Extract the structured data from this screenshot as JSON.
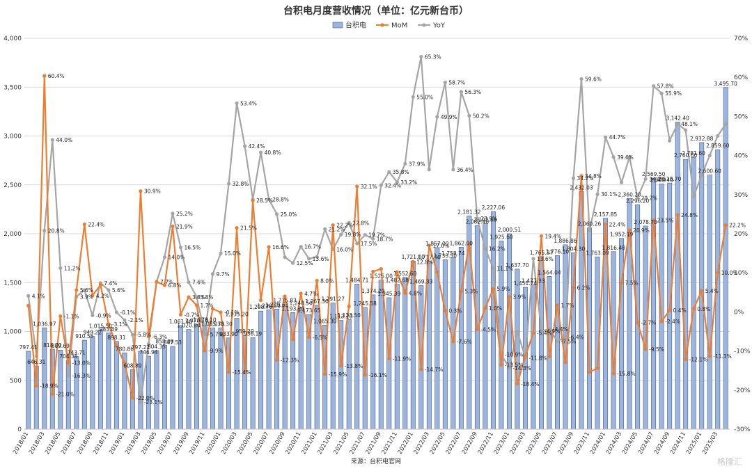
{
  "source": "来源：台积电官网",
  "watermark": "格隆汇",
  "colors": {
    "bar": "#9db5dc",
    "bar_edge": "#3c5a8c",
    "mom": "#ed7d31",
    "yoy": "#a5a5a5",
    "grid": "#d9d9d9"
  },
  "chart_data": {
    "type": "bar",
    "title": "台积电月度营收情况（单位：亿元新台币）",
    "legend_position": "top-center",
    "grid": true,
    "y_left": {
      "min": 0,
      "max": 4000,
      "step": 500,
      "ticks": [
        "0",
        "500",
        "1,000",
        "1,500",
        "2,000",
        "2,500",
        "3,000",
        "3,500",
        "4,000"
      ]
    },
    "y_right": {
      "min": -30,
      "max": 70,
      "step": 10,
      "ticks": [
        "-30%",
        "-20%",
        "-10%",
        "0%",
        "10%",
        "20%",
        "30%",
        "40%",
        "50%",
        "60%",
        "70%"
      ]
    },
    "categories": [
      "2018/01",
      "2018/02",
      "2018/03",
      "2018/04",
      "2018/05",
      "2018/06",
      "2018/07",
      "2018/08",
      "2018/09",
      "2018/10",
      "2018/11",
      "2018/12",
      "2019/01",
      "2019/02",
      "2019/03",
      "2019/04",
      "2019/05",
      "2019/06",
      "2019/07",
      "2019/08",
      "2019/09",
      "2019/10",
      "2019/11",
      "2019/12",
      "2020/01",
      "2020/02",
      "2020/03",
      "2020/04",
      "2020/05",
      "2020/06",
      "2020/07",
      "2020/08",
      "2020/09",
      "2020/10",
      "2020/11",
      "2020/12",
      "2021/01",
      "2021/02",
      "2021/03",
      "2021/04",
      "2021/05",
      "2021/06",
      "2021/07",
      "2021/08",
      "2021/09",
      "2021/10",
      "2021/11",
      "2021/12",
      "2022/01",
      "2022/02",
      "2022/03",
      "2022/04",
      "2022/05",
      "2022/06",
      "2022/07",
      "2022/08",
      "2022/09",
      "2022/10",
      "2022/11",
      "2022/12",
      "2023/01",
      "2023/02",
      "2023/03",
      "2023/04",
      "2023/05",
      "2023/06",
      "2023/07",
      "2023/08",
      "2023/09",
      "2023/10",
      "2023/11",
      "2023/12",
      "2024/01",
      "2024/02",
      "2024/03",
      "2024/04",
      "2024/05",
      "2024/06",
      "2024/07",
      "2024/08",
      "2024/09",
      "2024/10",
      "2024/11",
      "2024/12",
      "2025/01",
      "2025/02",
      "2025/03",
      "2025/04"
    ],
    "x_tick_labels": [
      "2018/01",
      "2018/03",
      "2018/05",
      "2018/07",
      "2018/09",
      "2018/11",
      "2019/01",
      "2019/03",
      "2019/05",
      "2019/07",
      "2019/09",
      "2019/11",
      "2020/01",
      "2020/03",
      "2020/05",
      "2020/07",
      "2020/09",
      "2020/11",
      "2021/01",
      "2021/03",
      "2021/05",
      "2021/07",
      "2021/09",
      "2021/11",
      "2022/01",
      "2022/03",
      "2022/05",
      "2022/07",
      "2022/09",
      "2022/11",
      "2023/01",
      "2023/03",
      "2023/05",
      "2023/07",
      "2023/09",
      "2023/11",
      "2024/01",
      "2024/03",
      "2024/05",
      "2024/07",
      "2024/09",
      "2024/11",
      "2025/01",
      "2025/03"
    ],
    "series": [
      {
        "name": "台积电",
        "type": "bar",
        "axis": "left",
        "values": [
          797.41,
          646.31,
          1036.97,
          818.7,
          809.69,
          704.38,
          743.71,
          910.55,
          949.22,
          1015.5,
          983.89,
          898.31,
          780.86,
          608.89,
          797.22,
          746.94,
          804.35,
          858.09,
          847.53,
          1061.4,
          1020.8,
          1070.1,
          1078.1,
          1035.7,
          1035.3,
          933.9,
          1135.2,
          959.2,
          936.19,
          1208.76,
          1220.5,
          1229.63,
          1275.83,
          1193.2,
          1248.5,
          1173.65,
          1267.3,
          1065.3,
          1291.27,
          1113.2,
          1123.5,
          1484.71,
          1245.58,
          1374.2,
          1525.0,
          1345.39,
          1482.68,
          1552.6,
          1721.0,
          1469.33,
          1717.9,
          1857.0,
          1733.5,
          1758.74,
          1862.0,
          2181.32,
          2082.4,
          2102.66,
          2227.06,
          1925.6,
          2000.51,
          1637.7,
          1451.74,
          1477.33,
          1765.37,
          1564.04,
          1776.1,
          1886.86,
          1804.3,
          2432.03,
          2060.26,
          1763.09,
          2157.85,
          1816.48,
          1952.19,
          2360.2,
          2296.2,
          2078.7,
          2569.5,
          2509.4,
          2518.7,
          3142.4,
          2760.6,
          2781.6,
          2932.88,
          2600.6,
          2859.6,
          3495.7
        ],
        "labels": [
          "797.41",
          "646.31",
          "1,036.97",
          "818.70",
          "809.69",
          "704.38",
          "743.71",
          "910.55",
          "949.22",
          "1,015.50",
          "983.89",
          "898.31",
          "780.86",
          "608.89",
          "797.22",
          "746.94",
          "804.35",
          "858.09",
          "847.53",
          "1,061.40",
          "1,020.80",
          "1,070.10",
          "1,078.10",
          "1,035.70",
          "1,035.30",
          "933.90",
          "1,135.20",
          "959.20",
          "936.19",
          "1,208.76",
          "1,220.50",
          "1,229.63",
          "1,275.83",
          "1,193.20",
          "1,248.50",
          "1,173.65",
          "1,267.30",
          "1,065.30",
          "1,291.27",
          "1,113.20",
          "1,123.50",
          "1,484.71",
          "1,245.58",
          "1,374.20",
          "1,525.00",
          "1,345.39",
          "1,482.68",
          "1,552.60",
          "1,721.00",
          "1,469.33",
          "1,717.90",
          "1,857.00",
          "1,733.50",
          "1,758.74",
          "1,862.00",
          "2,181.32",
          "2,082.40",
          "2,102.66",
          "2,227.06",
          "1,925.60",
          "2,000.51",
          "1,637.70",
          "1,451.74",
          "1,477.33",
          "1,765.37",
          "1,564.04",
          "1,776.10",
          "1,886.86",
          "1,804.30",
          "2,432.03",
          "2,060.26",
          "1,763.09",
          "2,157.85",
          "1,816.48",
          "1,952.19",
          "2,360.20",
          "2,296.20",
          "2,078.70",
          "2,569.50",
          "2,509.40",
          "2,518.70",
          "3,142.40",
          "2,760.60",
          "2,781.60",
          "2,932.88",
          "2,600.60",
          "2,859.60",
          "3,495.70"
        ]
      },
      {
        "name": "MoM",
        "type": "line",
        "axis": "right",
        "values": [
          1.6,
          -18.9,
          60.4,
          -21.0,
          -1.1,
          -13.0,
          5.6,
          22.4,
          4.2,
          6.9,
          -3.1,
          -8.7,
          -13.1,
          -22.0,
          30.9,
          -6.3,
          7.7,
          6.8,
          21.9,
          -0.7,
          3.8,
          1.7,
          -9.9,
          0.8,
          -0.1,
          -15.4,
          21.5,
          -15.4,
          28.5,
          3.0,
          16.6,
          -12.3,
          4.0,
          -7.0,
          4.7,
          -6.5,
          8.0,
          -15.9,
          22.2,
          -13.8,
          1.4,
          32.1,
          -16.1,
          10.3,
          11.0,
          -11.9,
          10.2,
          4.8,
          12.8,
          -14.7,
          17.0,
          10.2,
          0.3,
          -7.6,
          5.3,
          17.5,
          -4.5,
          1.0,
          5.9,
          -13.5,
          3.9,
          -18.4,
          -11.3,
          -5.4,
          19.4,
          -11.4,
          1.7,
          -12.9,
          6.2,
          34.8,
          -15.4,
          -14.4,
          22.4,
          -15.8,
          7.5,
          20.9,
          -2.7,
          -9.5,
          23.5,
          -2.4,
          0.4,
          24.8,
          -12.1,
          0.8,
          5.4,
          -11.3,
          10.0,
          22.2
        ],
        "labels": [
          "",
          "-18.9%",
          "60.4%",
          "-21.0%",
          "-1.1%",
          "-13.0%",
          "5.6%",
          "22.4%",
          "4.2%",
          "",
          "-3.1%",
          "",
          "",
          "-22.0%",
          "30.9%",
          "-6.3%",
          "7.7%",
          "6.8%",
          "21.9%",
          "-0.7%",
          "3.8%",
          "1.7%",
          "-9.9%",
          "",
          "-0.1%",
          "-15.4%",
          "21.5%",
          "",
          "28.5%",
          "",
          "16.6%",
          "-12.3%",
          "",
          "",
          "4.7%",
          "-6.5%",
          "8.0%",
          "-15.9%",
          "22.2%",
          "-13.8%",
          "",
          "32.1%",
          "-16.1%",
          "",
          "",
          "-11.9%",
          "",
          "4.8%",
          "12.8%",
          "-14.7%",
          "17.0%",
          "",
          "0.3%",
          "-7.6%",
          "5.3%",
          "",
          "-4.5%",
          "1.0%",
          "5.9%",
          "-13.5%",
          "3.9%",
          "-18.4%",
          "",
          "-5.4%",
          "19.4%",
          "",
          "1.7%",
          "",
          "6.2%",
          "34.8%",
          "",
          "",
          "22.4%",
          "-15.8%",
          "7.5%",
          "20.9%",
          "-2.7%",
          "-9.5%",
          "23.5%",
          "-2.4%",
          "0.4%",
          "24.8%",
          "-12.1%",
          "0.8%",
          "5.4%",
          "-11.3%",
          "10.0%",
          "22.2%"
        ]
      },
      {
        "name": "YoY",
        "type": "line",
        "axis": "right",
        "values": [
          4.1,
          -11.3,
          20.8,
          44.0,
          11.2,
          -16.3,
          3.9,
          5.6,
          -0.9,
          7.4,
          5.6,
          -0.1,
          -2.1,
          -5.8,
          -23.1,
          -8.2,
          7.7,
          14.0,
          25.2,
          16.5,
          7.6,
          3.8,
          -5.7,
          9.7,
          15.0,
          32.8,
          53.4,
          42.4,
          28.8,
          40.8,
          28.8,
          25.0,
          14.0,
          12.5,
          16.7,
          13.6,
          14.1,
          21.2,
          16.0,
          19.8,
          22.8,
          17.5,
          19.7,
          18.7,
          32.4,
          35.8,
          33.2,
          37.9,
          55.0,
          65.3,
          36.4,
          49.9,
          58.7,
          36.4,
          56.3,
          50.2,
          23.9,
          16.2,
          11.1,
          -10.9,
          -14.3,
          -4.9,
          -11.8,
          13.6,
          -4.9,
          -4.4,
          -7.5,
          -6.4,
          34.2,
          59.6,
          20.8,
          30.1,
          44.7,
          39.6,
          33.1,
          39.6,
          29.2,
          34.0,
          57.8,
          55.9,
          43.8,
          48.1,
          46.5,
          29.5,
          35.0,
          40.0,
          45.0,
          48.1
        ],
        "labels": [
          "4.1%",
          "",
          "20.8%",
          "44.0%",
          "11.2%",
          "-16.3%",
          "3.9%",
          "",
          "-0.9%",
          "7.4%",
          "5.6%",
          "-0.1%",
          "-2.1%",
          "-5.8%",
          "-23.1%",
          "",
          "",
          "14.0%",
          "25.2%",
          "16.5%",
          "7.6%",
          "3.8%",
          "-5.7%",
          "9.7%",
          "15.0%",
          "32.8%",
          "53.4%",
          "42.4%",
          "",
          "40.8%",
          "28.8%",
          "25.0%",
          "",
          "12.5%",
          "16.7%",
          "13.6%",
          "",
          "21.2%",
          "16.0%",
          "19.8%",
          "22.8%",
          "17.5%",
          "19.7%",
          "18.7%",
          "32.4%",
          "35.8%",
          "33.2%",
          "37.9%",
          "55.0%",
          "65.3%",
          "",
          "49.9%",
          "58.7%",
          "36.4%",
          "56.3%",
          "50.2%",
          "23.9%",
          "16.2%",
          "11.1%",
          "-10.9%",
          "-14.3%",
          "",
          "-11.8%",
          "13.6%",
          "-4.9%",
          "-4.4%",
          "-7.5%",
          "-6.4%",
          "34.2%",
          "59.6%",
          "",
          "30.1%",
          "44.7%",
          "39.6%",
          "",
          "",
          "29.2%",
          "34.0%",
          "57.8%",
          "55.9%",
          "",
          "48.1%",
          "",
          "",
          "",
          "",
          "",
          ""
        ]
      }
    ]
  }
}
